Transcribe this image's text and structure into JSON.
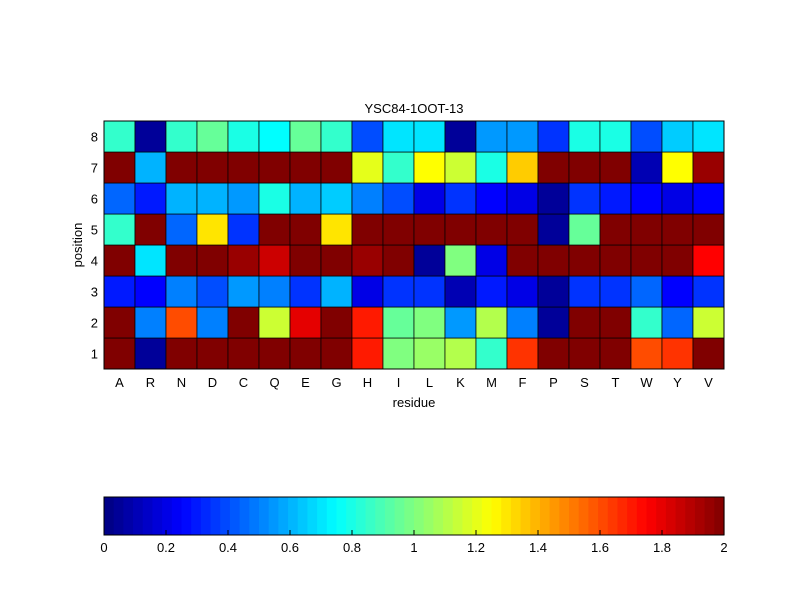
{
  "chart_data": {
    "type": "heatmap",
    "title": "YSC84-1OOT-13",
    "xlabel": "residue",
    "ylabel": "position",
    "x_categories": [
      "A",
      "R",
      "N",
      "D",
      "C",
      "Q",
      "E",
      "G",
      "H",
      "I",
      "L",
      "K",
      "M",
      "F",
      "P",
      "S",
      "T",
      "W",
      "Y",
      "V"
    ],
    "y_categories": [
      "1",
      "2",
      "3",
      "4",
      "5",
      "6",
      "7",
      "8"
    ],
    "values_by_position": [
      [
        2.0,
        0.05,
        2.0,
        2.0,
        2.0,
        2.0,
        2.0,
        2.0,
        1.7,
        1.0,
        1.05,
        1.1,
        0.85,
        1.65,
        2.0,
        2.0,
        2.0,
        1.6,
        1.65,
        2.0
      ],
      [
        2.0,
        0.5,
        1.6,
        0.5,
        2.0,
        1.15,
        1.8,
        2.0,
        1.7,
        0.95,
        1.0,
        0.55,
        1.1,
        0.5,
        0.05,
        2.0,
        2.0,
        0.85,
        0.45,
        1.15
      ],
      [
        0.3,
        0.25,
        0.5,
        0.4,
        0.55,
        0.5,
        0.35,
        0.6,
        0.2,
        0.35,
        0.35,
        0.1,
        0.3,
        0.2,
        0.05,
        0.35,
        0.35,
        0.45,
        0.25,
        0.35
      ],
      [
        2.0,
        0.7,
        2.0,
        2.0,
        1.95,
        1.85,
        2.0,
        2.0,
        1.95,
        2.0,
        0.05,
        1.0,
        0.2,
        2.0,
        2.0,
        2.0,
        2.0,
        2.0,
        2.0,
        1.75
      ],
      [
        0.85,
        2.0,
        0.45,
        1.3,
        0.35,
        2.0,
        2.0,
        1.3,
        2.0,
        2.0,
        2.0,
        2.0,
        2.0,
        2.0,
        0.05,
        0.95,
        2.0,
        2.0,
        2.0,
        2.0
      ],
      [
        0.45,
        0.3,
        0.6,
        0.6,
        0.55,
        0.8,
        0.6,
        0.65,
        0.5,
        0.4,
        0.2,
        0.35,
        0.25,
        0.2,
        0.05,
        0.35,
        0.3,
        0.25,
        0.2,
        0.25
      ],
      [
        2.0,
        0.6,
        2.0,
        2.0,
        2.0,
        2.0,
        2.0,
        2.0,
        1.2,
        0.85,
        1.25,
        1.15,
        0.8,
        1.35,
        2.0,
        2.0,
        2.0,
        0.1,
        1.25,
        1.95
      ],
      [
        0.85,
        0.05,
        0.85,
        0.95,
        0.8,
        0.75,
        0.95,
        0.85,
        0.4,
        0.7,
        0.7,
        0.05,
        0.55,
        0.55,
        0.35,
        0.8,
        0.8,
        0.4,
        0.65,
        0.7
      ]
    ],
    "colorbar": {
      "colormap": "jet",
      "range": [
        0,
        2
      ],
      "ticks": [
        "0",
        "0.2",
        "0.4",
        "0.6",
        "0.8",
        "1",
        "1.2",
        "1.4",
        "1.6",
        "1.8",
        "2"
      ]
    }
  }
}
